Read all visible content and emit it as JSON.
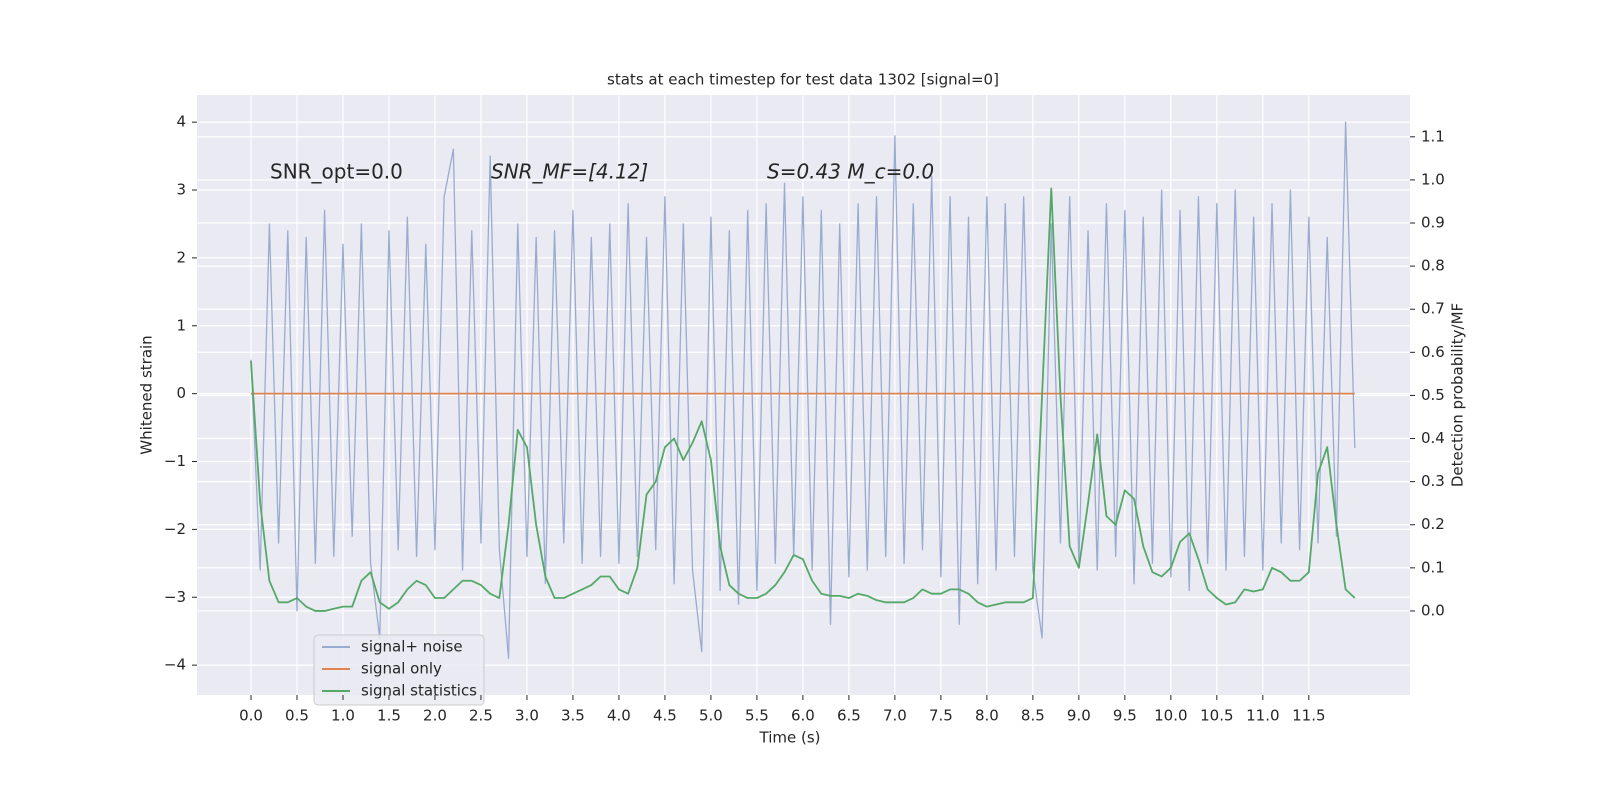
{
  "chart_data": {
    "type": "line",
    "title": "stats at each timestep for test data 1302 [signal=0]",
    "xlabel": "Time (s)",
    "ylabel": "Whitened strain",
    "y2label": "Detection probability/MF",
    "annotations": [
      "SNR_opt=0.0",
      "SNR_MF=[4.12]",
      "S=0.43   M_c=0.0"
    ],
    "x": [
      0,
      0.1,
      0.2,
      0.3,
      0.4,
      0.5,
      0.6,
      0.7,
      0.8,
      0.9,
      1,
      1.1,
      1.2,
      1.3,
      1.4,
      1.5,
      1.6,
      1.7,
      1.8,
      1.9,
      2,
      2.1,
      2.2,
      2.3,
      2.4,
      2.5,
      2.6,
      2.7,
      2.8,
      2.9,
      3,
      3.1,
      3.2,
      3.3,
      3.4,
      3.5,
      3.6,
      3.7,
      3.8,
      3.9,
      4,
      4.1,
      4.2,
      4.3,
      4.4,
      4.5,
      4.6,
      4.7,
      4.8,
      4.9,
      5,
      5.1,
      5.2,
      5.3,
      5.4,
      5.5,
      5.6,
      5.7,
      5.8,
      5.9,
      6,
      6.1,
      6.2,
      6.3,
      6.4,
      6.5,
      6.6,
      6.7,
      6.8,
      6.9,
      7,
      7.1,
      7.2,
      7.3,
      7.4,
      7.5,
      7.6,
      7.7,
      7.8,
      7.9,
      8,
      8.1,
      8.2,
      8.3,
      8.4,
      8.5,
      8.6,
      8.7,
      8.8,
      8.9,
      9,
      9.1,
      9.2,
      9.3,
      9.4,
      9.5,
      9.6,
      9.7,
      9.8,
      9.9,
      10,
      10.1,
      10.2,
      10.3,
      10.4,
      10.5,
      10.6,
      10.7,
      10.8,
      10.9,
      11,
      11.1,
      11.2,
      11.3,
      11.4,
      11.5,
      11.6,
      11.7,
      11.8,
      11.9,
      12
    ],
    "series": [
      {
        "name": "signal+ noise",
        "color": "#9aabd0",
        "axis": "y",
        "values": [
          0.5,
          -2.6,
          2.5,
          -2.2,
          2.4,
          -3.2,
          2.3,
          -2.5,
          2.7,
          -2.4,
          2.2,
          -2.1,
          2.5,
          -2.5,
          -3.6,
          2.4,
          -2.3,
          2.6,
          -2.4,
          2.2,
          -2.3,
          2.9,
          3.6,
          -2.6,
          2.4,
          -2.2,
          3.5,
          -2.3,
          -3.9,
          2.5,
          -2.4,
          2.3,
          -2.8,
          2.4,
          -2.2,
          2.7,
          -2.5,
          2.3,
          -2.4,
          2.5,
          -2.5,
          2.8,
          -2.4,
          2.3,
          -2.3,
          2.9,
          -2.8,
          2.5,
          -2.6,
          -3.8,
          2.6,
          -2.9,
          2.4,
          -3.1,
          2.7,
          -2.9,
          2.8,
          -2.5,
          3.1,
          -2.4,
          2.9,
          -2.6,
          2.7,
          -3.4,
          2.5,
          -2.7,
          2.8,
          -2.6,
          2.9,
          -2.4,
          3.8,
          -2.5,
          2.8,
          -2.3,
          3.2,
          -2.7,
          2.9,
          -3.4,
          2.6,
          -2.8,
          2.9,
          -2.6,
          2.8,
          -2.4,
          2.9,
          -2.6,
          -3.6,
          2.5,
          -2.2,
          2.9,
          -2.5,
          2.4,
          -2.6,
          2.8,
          -2.4,
          2.7,
          -2.8,
          2.6,
          -2.5,
          3.0,
          -2.7,
          2.7,
          -2.9,
          2.9,
          -2.5,
          2.8,
          -2.6,
          3.0,
          -2.4,
          2.6,
          -2.6,
          2.8,
          -2.2,
          3.0,
          -2.3,
          2.6,
          -2.2,
          2.3,
          -2.1,
          4.0,
          -0.8
        ]
      },
      {
        "name": "signal only",
        "color": "#dd8452",
        "axis": "y",
        "values": [
          0,
          0,
          0,
          0,
          0,
          0,
          0,
          0,
          0,
          0,
          0,
          0,
          0,
          0,
          0,
          0,
          0,
          0,
          0,
          0,
          0,
          0,
          0,
          0,
          0,
          0,
          0,
          0,
          0,
          0,
          0,
          0,
          0,
          0,
          0,
          0,
          0,
          0,
          0,
          0,
          0,
          0,
          0,
          0,
          0,
          0,
          0,
          0,
          0,
          0,
          0,
          0,
          0,
          0,
          0,
          0,
          0,
          0,
          0,
          0,
          0,
          0,
          0,
          0,
          0,
          0,
          0,
          0,
          0,
          0,
          0,
          0,
          0,
          0,
          0,
          0,
          0,
          0,
          0,
          0,
          0,
          0,
          0,
          0,
          0,
          0,
          0,
          0,
          0,
          0,
          0,
          0,
          0,
          0,
          0,
          0,
          0,
          0,
          0,
          0,
          0,
          0,
          0,
          0,
          0,
          0,
          0,
          0,
          0,
          0,
          0,
          0,
          0,
          0,
          0,
          0,
          0,
          0,
          0,
          0,
          0
        ]
      },
      {
        "name": "signal statistics",
        "color": "#55a868",
        "axis": "y2",
        "values": [
          0.58,
          0.25,
          0.07,
          0.02,
          0.02,
          0.03,
          0.01,
          0,
          0,
          0.005,
          0.01,
          0.01,
          0.07,
          0.09,
          0.02,
          0.005,
          0.02,
          0.05,
          0.07,
          0.06,
          0.03,
          0.03,
          0.05,
          0.07,
          0.07,
          0.06,
          0.04,
          0.03,
          0.2,
          0.42,
          0.38,
          0.2,
          0.08,
          0.03,
          0.03,
          0.04,
          0.05,
          0.06,
          0.08,
          0.08,
          0.05,
          0.04,
          0.1,
          0.27,
          0.3,
          0.38,
          0.4,
          0.35,
          0.39,
          0.44,
          0.35,
          0.15,
          0.06,
          0.04,
          0.03,
          0.03,
          0.04,
          0.06,
          0.09,
          0.13,
          0.12,
          0.07,
          0.04,
          0.035,
          0.035,
          0.03,
          0.04,
          0.035,
          0.025,
          0.02,
          0.02,
          0.02,
          0.03,
          0.05,
          0.04,
          0.04,
          0.05,
          0.05,
          0.04,
          0.02,
          0.01,
          0.015,
          0.02,
          0.02,
          0.02,
          0.03,
          0.5,
          0.98,
          0.5,
          0.15,
          0.1,
          0.25,
          0.41,
          0.22,
          0.2,
          0.28,
          0.26,
          0.15,
          0.09,
          0.08,
          0.1,
          0.16,
          0.18,
          0.12,
          0.05,
          0.03,
          0.015,
          0.02,
          0.05,
          0.045,
          0.05,
          0.1,
          0.09,
          0.07,
          0.07,
          0.09,
          0.32,
          0.38,
          0.2,
          0.05,
          0.03
        ]
      }
    ],
    "xlim": [
      -0.587,
      12.6
    ],
    "xticks": [
      {
        "value": 0,
        "label": "0.0"
      },
      0.5,
      {
        "value": 1,
        "label": "1.0"
      },
      1.5,
      {
        "value": 2,
        "label": "2.0"
      },
      2.5,
      {
        "value": 3,
        "label": "3.0"
      },
      3.5,
      {
        "value": 4,
        "label": "4.0"
      },
      4.5,
      {
        "value": 5,
        "label": "5.0"
      },
      5.5,
      {
        "value": 6,
        "label": "6.0"
      },
      6.5,
      {
        "value": 7,
        "label": "7.0"
      },
      7.5,
      {
        "value": 8,
        "label": "8.0"
      },
      8.5,
      {
        "value": 9,
        "label": "9.0"
      },
      9.5,
      {
        "value": 10,
        "label": "10.0"
      },
      10.5,
      {
        "value": 11,
        "label": "11.0"
      },
      11.5
    ],
    "ylim": [
      -4.44,
      4.4
    ],
    "yticks": [
      {
        "value": -4,
        "label": "−4"
      },
      {
        "value": -3,
        "label": "−3"
      },
      {
        "value": -2,
        "label": "−2"
      },
      {
        "value": -1,
        "label": "−1"
      },
      0,
      1,
      2,
      3,
      4
    ],
    "y2lim": [
      -0.195,
      1.197
    ],
    "y2ticks": [
      {
        "value": 0,
        "label": "0.0"
      },
      0.1,
      0.2,
      0.3,
      0.4,
      0.5,
      0.6,
      0.7,
      0.8,
      0.9,
      {
        "value": 1,
        "label": "1.0"
      },
      1.1
    ],
    "grid": true,
    "legend": "lower left",
    "background": "#eaeaf2"
  }
}
